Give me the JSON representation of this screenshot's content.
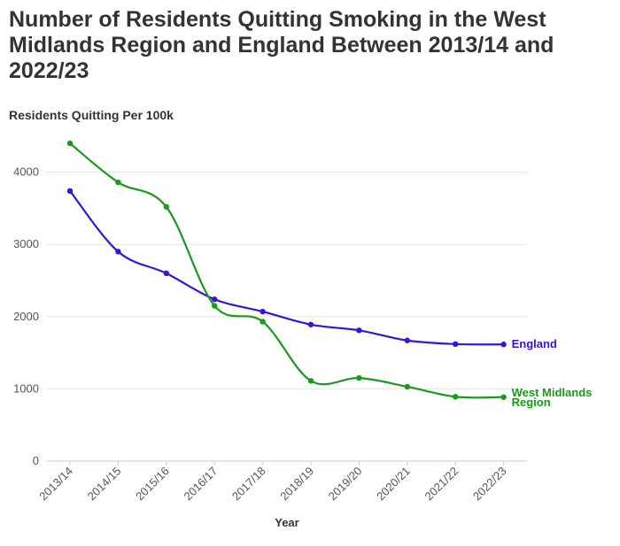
{
  "chart_data": {
    "type": "line",
    "title": "Number of Residents Quitting Smoking in the West Midlands Region and England Between 2013/14 and 2022/23",
    "ylabel": "Residents Quitting Per 100k",
    "xlabel": "Year",
    "categories": [
      "2013/14",
      "2014/15",
      "2015/16",
      "2016/17",
      "2017/18",
      "2018/19",
      "2019/20",
      "2020/21",
      "2021/22",
      "2022/23"
    ],
    "ylim": [
      0,
      4500
    ],
    "yticks": [
      0,
      1000,
      2000,
      3000,
      4000
    ],
    "grid": true,
    "legend": "line-end labels",
    "series": [
      {
        "name": "England",
        "color": "#3a13d8",
        "values": [
          3740,
          2900,
          2600,
          2240,
          2070,
          1890,
          1810,
          1670,
          1620,
          1615
        ]
      },
      {
        "name": "West Midlands Region",
        "label_lines": [
          "West Midlands",
          "Region"
        ],
        "color": "#1a9a1a",
        "values": [
          4400,
          3860,
          3520,
          2150,
          1930,
          1110,
          1150,
          1030,
          890,
          885
        ]
      }
    ]
  }
}
